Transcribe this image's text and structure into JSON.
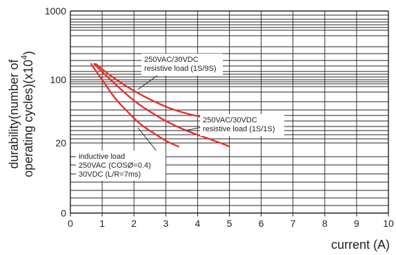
{
  "chart_data": {
    "type": "line",
    "title": "",
    "xlabel": "current (A)",
    "ylabel_lines": [
      "durability(number of",
      "operating cycles)(x10",
      "4",
      ")"
    ],
    "x_ticks": [
      0,
      1,
      2,
      3,
      4,
      5,
      6,
      7,
      8,
      9,
      10
    ],
    "y_tick_labels": [
      "0",
      "20",
      "100",
      "1000"
    ],
    "xlim": [
      0,
      10
    ],
    "grid": true,
    "series_color": "#e8302a",
    "grid_color": "#231f20",
    "series": [
      {
        "points": [
          [
            0.8,
            170
          ],
          [
            1.2,
            120
          ],
          [
            1.6,
            92
          ],
          [
            2.0,
            75
          ],
          [
            2.6,
            58
          ],
          [
            3.2,
            47
          ],
          [
            3.8,
            41
          ],
          [
            4.4,
            37
          ],
          [
            5.0,
            35
          ]
        ]
      },
      {
        "points": [
          [
            0.75,
            170
          ],
          [
            1.0,
            130
          ],
          [
            1.4,
            90
          ],
          [
            2.0,
            58
          ],
          [
            2.6,
            42
          ],
          [
            3.2,
            32
          ],
          [
            3.8,
            26
          ],
          [
            4.4,
            22
          ],
          [
            5.0,
            19
          ]
        ]
      },
      {
        "points": [
          [
            0.65,
            170
          ],
          [
            1.0,
            100
          ],
          [
            1.4,
            62
          ],
          [
            1.8,
            44
          ],
          [
            2.2,
            32
          ],
          [
            2.6,
            26
          ],
          [
            3.0,
            21
          ],
          [
            3.4,
            19
          ]
        ]
      }
    ],
    "annotations": [
      {
        "lines": [
          "250VAC/30VDC",
          "resistive load (1S/9S)"
        ]
      },
      {
        "lines": [
          "250VAC/30VDC",
          "resistive load (1S/1S)"
        ]
      },
      {
        "lines": [
          "inductive load",
          "250VAC (COSØ=0.4)",
          "30VDC (L/R=7ms)"
        ]
      }
    ]
  }
}
